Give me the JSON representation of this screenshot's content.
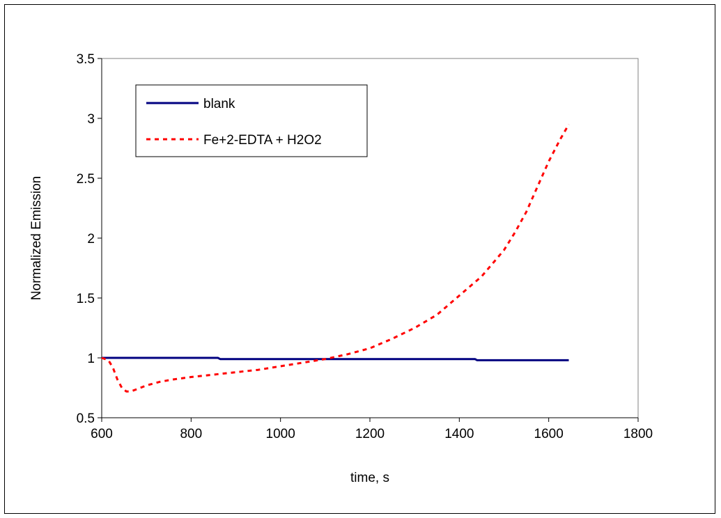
{
  "chart_data": {
    "type": "line",
    "title": "",
    "xlabel": "time, s",
    "ylabel": "Normalized Emission",
    "xlim": [
      600,
      1800
    ],
    "ylim": [
      0.5,
      3.5
    ],
    "xticks": [
      "600",
      "800",
      "1000",
      "1200",
      "1400",
      "1600",
      "1800"
    ],
    "yticks": [
      "0.5",
      "1",
      "1.5",
      "2",
      "2.5",
      "3",
      "3.5"
    ],
    "grid": false,
    "legend_position": "top-left",
    "series": [
      {
        "name": "blank",
        "color": "#000080",
        "style": "solid",
        "x": [
          600,
          860,
          865,
          1435,
          1440,
          1645
        ],
        "y": [
          1.0,
          1.0,
          0.99,
          0.99,
          0.98,
          0.98
        ]
      },
      {
        "name": "Fe+2-EDTA + H2O2",
        "color": "#ff0000",
        "style": "dashed",
        "x": [
          600,
          615,
          625,
          635,
          645,
          655,
          665,
          680,
          700,
          730,
          760,
          800,
          850,
          900,
          950,
          1000,
          1050,
          1100,
          1150,
          1200,
          1250,
          1300,
          1350,
          1400,
          1450,
          1500,
          1525,
          1550,
          1575,
          1600,
          1625,
          1645
        ],
        "y": [
          1.0,
          0.98,
          0.92,
          0.82,
          0.75,
          0.72,
          0.72,
          0.74,
          0.77,
          0.8,
          0.82,
          0.84,
          0.86,
          0.88,
          0.9,
          0.93,
          0.96,
          0.99,
          1.03,
          1.08,
          1.16,
          1.25,
          1.36,
          1.52,
          1.68,
          1.9,
          2.05,
          2.22,
          2.43,
          2.64,
          2.82,
          2.95
        ]
      }
    ]
  }
}
